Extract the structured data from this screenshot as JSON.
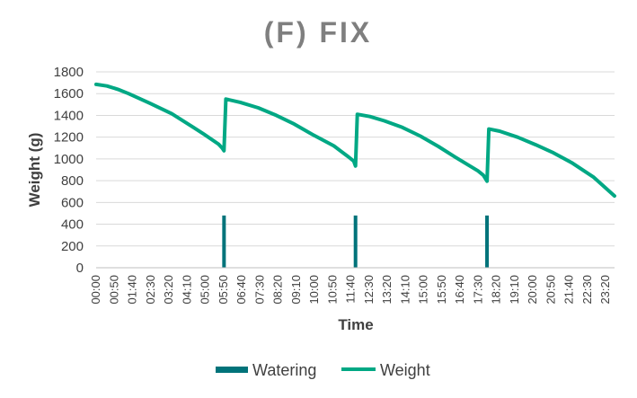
{
  "chart_data": {
    "type": "line",
    "title": "(F) FIX",
    "xlabel": "Time",
    "ylabel": "Weight (g)",
    "ylim": [
      0,
      1800
    ],
    "yticks": [
      0,
      200,
      400,
      600,
      800,
      1000,
      1200,
      1400,
      1600,
      1800
    ],
    "xtick_labels": [
      "00:00",
      "00:50",
      "01:40",
      "02:30",
      "03:20",
      "04:10",
      "05:00",
      "05:50",
      "06:40",
      "07:30",
      "08:20",
      "09:10",
      "10:00",
      "10:50",
      "11:40",
      "12:30",
      "13:20",
      "14:10",
      "15:00",
      "15:50",
      "16:40",
      "17:30",
      "18:20",
      "19:10",
      "20:00",
      "20:50",
      "21:40",
      "22:30",
      "23:20"
    ],
    "grid": "horizontal",
    "legend": "bottom",
    "colors": {
      "watering": "#00737a",
      "weight": "#00a884"
    },
    "series": [
      {
        "name": "Watering",
        "kind": "bar",
        "x": [
          355,
          720,
          1085
        ],
        "values": [
          480,
          480,
          480
        ]
      },
      {
        "name": "Weight",
        "kind": "line",
        "x": [
          0,
          30,
          60,
          90,
          150,
          210,
          270,
          300,
          340,
          350,
          355,
          360,
          400,
          450,
          500,
          550,
          600,
          660,
          700,
          715,
          720,
          725,
          760,
          800,
          850,
          900,
          950,
          1000,
          1060,
          1075,
          1085,
          1090,
          1120,
          1170,
          1220,
          1270,
          1320,
          1380,
          1439
        ],
        "values": [
          1685,
          1670,
          1640,
          1600,
          1510,
          1415,
          1290,
          1225,
          1135,
          1100,
          1075,
          1550,
          1520,
          1470,
          1400,
          1320,
          1225,
          1120,
          1020,
          980,
          935,
          1410,
          1390,
          1350,
          1290,
          1210,
          1115,
          1010,
          890,
          850,
          795,
          1275,
          1255,
          1200,
          1130,
          1055,
          965,
          835,
          660
        ]
      }
    ]
  }
}
